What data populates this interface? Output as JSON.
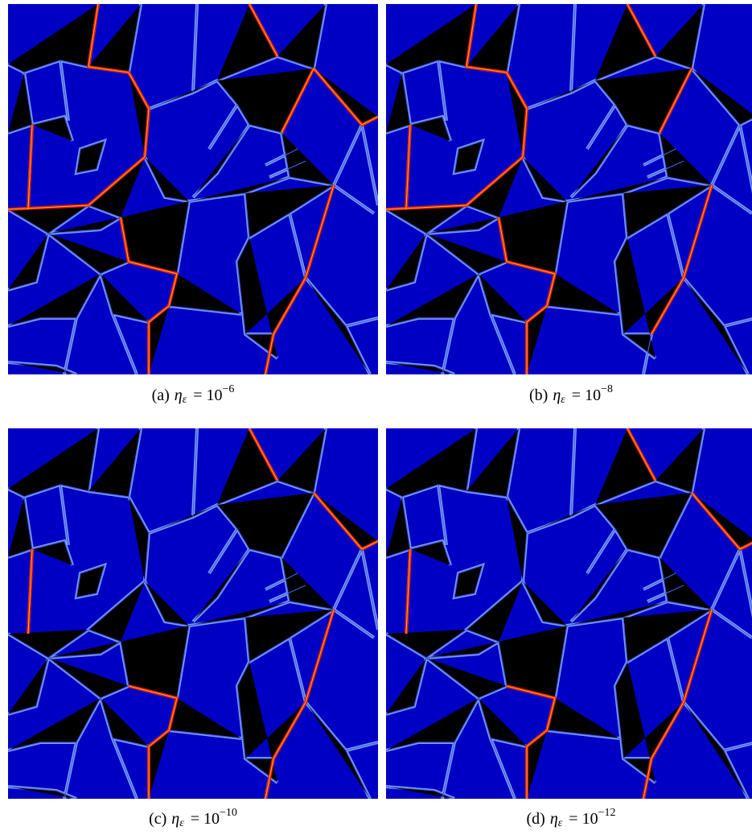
{
  "panels": [
    {
      "label": "(a)",
      "symbol": "η",
      "subscript": "ε",
      "relation": "= 10",
      "exponent": "−6"
    },
    {
      "label": "(b)",
      "symbol": "η",
      "subscript": "ε",
      "relation": "= 10",
      "exponent": "−8"
    },
    {
      "label": "(c)",
      "symbol": "η",
      "subscript": "ε",
      "relation": "= 10",
      "exponent": "−10"
    },
    {
      "label": "(d)",
      "symbol": "η",
      "subscript": "ε",
      "relation": "= 10",
      "exponent": "−12"
    }
  ]
}
